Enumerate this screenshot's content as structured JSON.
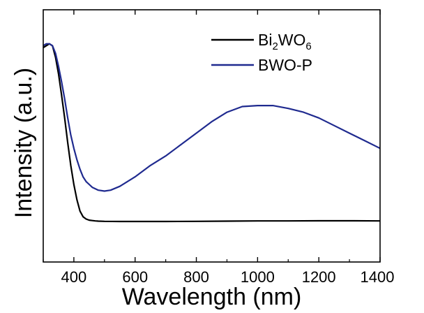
{
  "chart_data": {
    "type": "line",
    "title": "",
    "xlabel": "Wavelength (nm)",
    "ylabel": "Intensity (a.u.)",
    "xlim": [
      300,
      1400
    ],
    "ylim": [
      0,
      1
    ],
    "x_ticks": [
      400,
      600,
      800,
      1000,
      1200,
      1400
    ],
    "x_tick_labels": [
      "400",
      "600",
      "800",
      "1000",
      "1200",
      "1400"
    ],
    "y_ticks_shown": false,
    "legend_position": "top-right",
    "series": [
      {
        "name": "Bi2WO6",
        "legend_parts": {
          "base1": "Bi",
          "sub1": "2",
          "base2": "WO",
          "sub2": "6"
        },
        "color": "#000000",
        "x": [
          300,
          310,
          320,
          330,
          340,
          350,
          360,
          370,
          380,
          390,
          400,
          410,
          420,
          430,
          440,
          450,
          460,
          470,
          480,
          500,
          550,
          600,
          700,
          800,
          900,
          1000,
          1100,
          1200,
          1300,
          1400
        ],
        "y": [
          0.97,
          0.98,
          0.99,
          0.98,
          0.92,
          0.83,
          0.72,
          0.6,
          0.47,
          0.35,
          0.25,
          0.17,
          0.11,
          0.08,
          0.068,
          0.062,
          0.06,
          0.058,
          0.057,
          0.056,
          0.055,
          0.055,
          0.055,
          0.056,
          0.057,
          0.058,
          0.058,
          0.059,
          0.059,
          0.058
        ]
      },
      {
        "name": "BWO-P",
        "legend_parts": {
          "base1": "BWO-P"
        },
        "color": "#1f2a8f",
        "x": [
          300,
          310,
          320,
          330,
          340,
          350,
          360,
          370,
          380,
          390,
          400,
          410,
          420,
          430,
          440,
          450,
          460,
          480,
          500,
          520,
          550,
          600,
          650,
          700,
          750,
          800,
          850,
          900,
          950,
          1000,
          1050,
          1100,
          1150,
          1200,
          1250,
          1300,
          1350,
          1400
        ],
        "y": [
          0.98,
          0.99,
          0.99,
          0.98,
          0.94,
          0.87,
          0.79,
          0.7,
          0.6,
          0.51,
          0.44,
          0.38,
          0.33,
          0.29,
          0.265,
          0.25,
          0.235,
          0.22,
          0.215,
          0.22,
          0.24,
          0.29,
          0.35,
          0.4,
          0.46,
          0.52,
          0.58,
          0.63,
          0.66,
          0.665,
          0.665,
          0.65,
          0.63,
          0.6,
          0.56,
          0.52,
          0.48,
          0.44
        ]
      }
    ]
  }
}
